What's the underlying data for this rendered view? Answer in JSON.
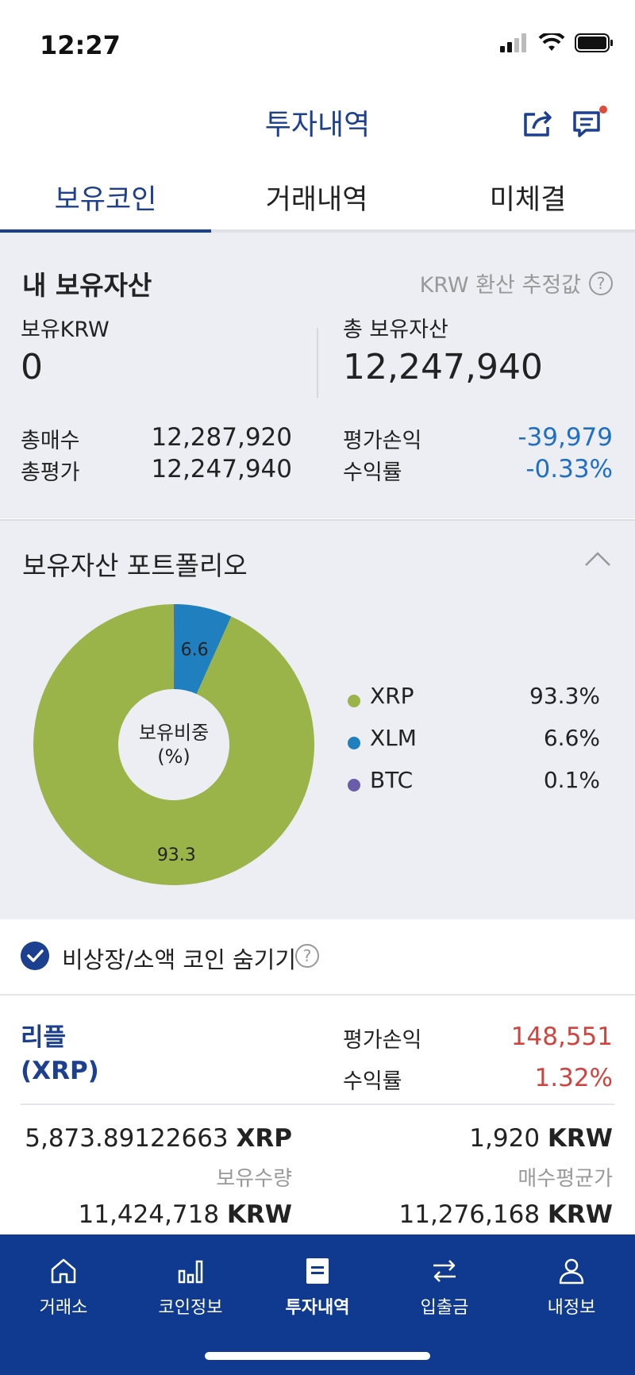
{
  "status_bar": {
    "time": "12:27"
  },
  "header": {
    "title": "투자내역"
  },
  "tabs": [
    {
      "label": "보유코인"
    },
    {
      "label": "거래내역"
    },
    {
      "label": "미체결"
    }
  ],
  "assets": {
    "title": "내 보유자산",
    "note": "KRW 환산 추정값",
    "krw_label": "보유KRW",
    "krw_value": "0",
    "total_label": "총 보유자산",
    "total_value": "12,247,940",
    "buy_label": "총매수",
    "buy_value": "12,287,920",
    "eval_label": "총평가",
    "eval_value": "12,247,940",
    "pl_label": "평가손익",
    "pl_value": "-39,979",
    "rate_label": "수익률",
    "rate_value": "-0.33%",
    "pl_color": "#1f6fc5"
  },
  "portfolio": {
    "title": "보유자산 포트폴리오",
    "center_label_1": "보유비중",
    "center_label_2": "(%)",
    "legend": [
      {
        "name": "XRP",
        "value": "93.3%",
        "color": "#9bb44a"
      },
      {
        "name": "XLM",
        "value": "6.6%",
        "color": "#1f7fbf"
      },
      {
        "name": "BTC",
        "value": "0.1%",
        "color": "#6b5bab"
      }
    ]
  },
  "chart_data": {
    "type": "pie",
    "title": "",
    "categories": [
      "XRP",
      "XLM",
      "BTC"
    ],
    "values": [
      93.3,
      6.6,
      0.1
    ],
    "slice_labels": [
      "93.3",
      "6.6",
      ""
    ],
    "colors": [
      "#9bb44a",
      "#1f7fbf",
      "#6b5bab"
    ],
    "legend_position": "right"
  },
  "filter": {
    "label": "비상장/소액 코인 숨기기",
    "checked": true
  },
  "coin": {
    "name_line1": "리플",
    "name_line2": "(XRP)",
    "pl_label": "평가손익",
    "pl_value": "148,551",
    "rate_label": "수익률",
    "rate_value": "1.32%",
    "profit_color": "#d0443f",
    "quantity": "5,873.89122663",
    "quantity_unit": "XRP",
    "quantity_label": "보유수량",
    "avg_price": "1,920",
    "avg_price_unit": "KRW",
    "avg_price_label": "매수평균가",
    "eval_amount": "11,424,718",
    "eval_amount_unit": "KRW",
    "buy_amount": "11,276,168",
    "buy_amount_unit": "KRW"
  },
  "bottom_nav": [
    {
      "label": "거래소",
      "icon": "home-icon"
    },
    {
      "label": "코인정보",
      "icon": "bar-chart-icon"
    },
    {
      "label": "투자내역",
      "icon": "document-icon"
    },
    {
      "label": "입출금",
      "icon": "transfer-icon"
    },
    {
      "label": "내정보",
      "icon": "user-icon"
    }
  ]
}
